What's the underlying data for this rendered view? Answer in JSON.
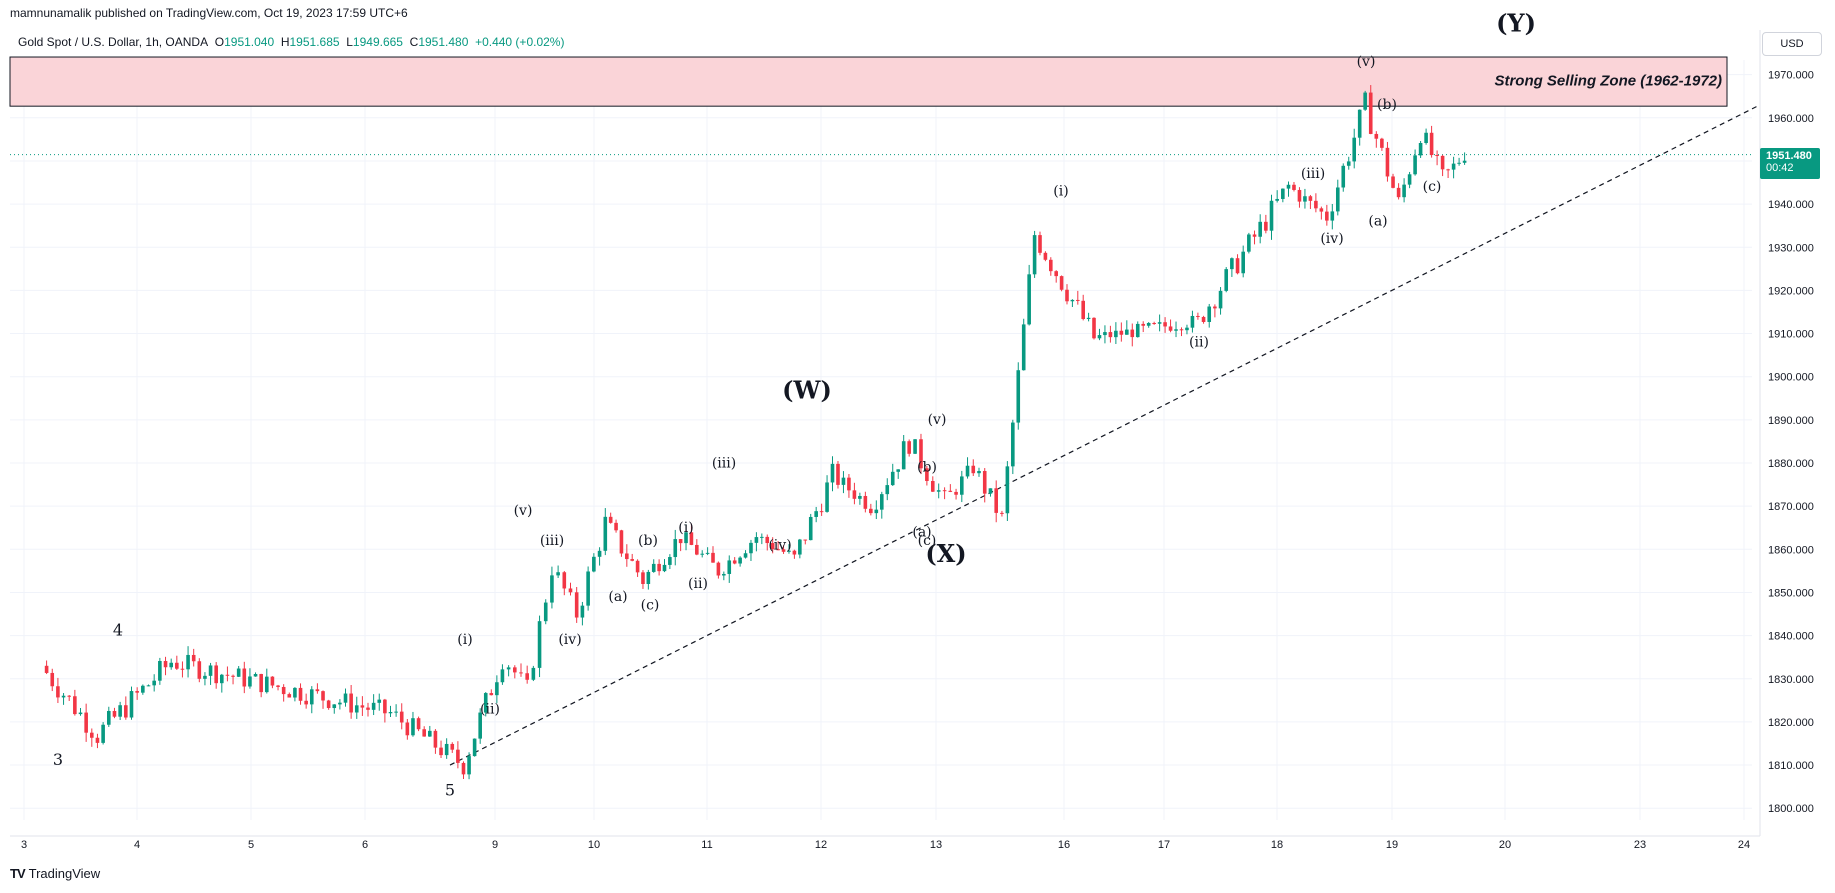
{
  "header": {
    "published": "mamnunamalik published on TradingView.com, Oct 19, 2023 17:59 UTC+6"
  },
  "symbol": {
    "name": "Gold Spot / U.S. Dollar, 1h, OANDA",
    "open_label": "O",
    "open": "1951.040",
    "high_label": "H",
    "high": "1951.685",
    "low_label": "L",
    "low": "1949.665",
    "close_label": "C",
    "close": "1951.480",
    "change": "+0.440 (+0.02%)"
  },
  "currency": "USD",
  "price_tag": {
    "price": "1951.480",
    "countdown": "00:42"
  },
  "footer": {
    "brand": "TradingView"
  },
  "colors": {
    "up": "#089981",
    "down": "#f23645",
    "zone_fill": "#fad4d8",
    "grid": "#f0f3fa"
  },
  "chart_data": {
    "type": "candlestick",
    "y_ticks": [
      "1970.000",
      "1960.000",
      "1950.000",
      "1940.000",
      "1930.000",
      "1920.000",
      "1910.000",
      "1900.000",
      "1890.000",
      "1880.000",
      "1870.000",
      "1860.000",
      "1850.000",
      "1840.000",
      "1830.000",
      "1820.000",
      "1810.000",
      "1800.000"
    ],
    "ylim": [
      1797,
      1978
    ],
    "x_ticks": [
      "3",
      "4",
      "5",
      "6",
      "9",
      "10",
      "11",
      "12",
      "13",
      "16",
      "17",
      "18",
      "19",
      "20",
      "23",
      "24"
    ],
    "key_points": [
      {
        "date": "3",
        "price": 1833
      },
      {
        "date": "3",
        "price": 1817
      },
      {
        "date": "4",
        "price": 1834
      },
      {
        "date": "6",
        "price": 1822
      },
      {
        "date": "8",
        "price": 1810
      },
      {
        "date": "9",
        "price": 1835
      },
      {
        "date": "9",
        "price": 1828
      },
      {
        "date": "9",
        "price": 1856
      },
      {
        "date": "9",
        "price": 1845
      },
      {
        "date": "10",
        "price": 1866
      },
      {
        "date": "10",
        "price": 1853
      },
      {
        "date": "10",
        "price": 1863
      },
      {
        "date": "11",
        "price": 1855
      },
      {
        "date": "11",
        "price": 1863
      },
      {
        "date": "11",
        "price": 1858
      },
      {
        "date": "12",
        "price": 1877
      },
      {
        "date": "12",
        "price": 1870
      },
      {
        "date": "12",
        "price": 1885
      },
      {
        "date": "13",
        "price": 1871
      },
      {
        "date": "13",
        "price": 1879
      },
      {
        "date": "13",
        "price": 1867
      },
      {
        "date": "15",
        "price": 1933
      },
      {
        "date": "16",
        "price": 1909
      },
      {
        "date": "17",
        "price": 1913
      },
      {
        "date": "18",
        "price": 1944
      },
      {
        "date": "18",
        "price": 1937
      },
      {
        "date": "18",
        "price": 1963
      },
      {
        "date": "19",
        "price": 1940
      },
      {
        "date": "19",
        "price": 1957
      },
      {
        "date": "19",
        "price": 1946
      },
      {
        "date": "19",
        "price": 1951.48
      }
    ],
    "selling_zone": {
      "label": "Strong Selling Zone (1962-1972)",
      "low": 1962,
      "high": 1972
    },
    "trendline": {
      "from": {
        "date": "8",
        "price": 1810
      },
      "to": {
        "date": "24",
        "price": 1963
      }
    },
    "wave_labels": [
      {
        "text": "3",
        "date": "3",
        "price": 1810,
        "size": "medium"
      },
      {
        "text": "4",
        "date": "4",
        "price": 1840,
        "size": "medium"
      },
      {
        "text": "5",
        "date": "8",
        "price": 1803,
        "size": "medium"
      },
      {
        "text": "(i)",
        "date": "9",
        "price": 1838,
        "size": "small"
      },
      {
        "text": "(ii)",
        "date": "9",
        "price": 1822,
        "size": "small"
      },
      {
        "text": "(iii)",
        "date": "9",
        "price": 1861,
        "size": "small"
      },
      {
        "text": "(iv)",
        "date": "9",
        "price": 1838,
        "size": "small"
      },
      {
        "text": "(v)",
        "date": "10",
        "price": 1868,
        "size": "small"
      },
      {
        "text": "(a)",
        "date": "10",
        "price": 1848,
        "size": "small"
      },
      {
        "text": "(b)",
        "date": "10",
        "price": 1861,
        "size": "small"
      },
      {
        "text": "(c)",
        "date": "10",
        "price": 1846,
        "size": "small"
      },
      {
        "text": "(i)",
        "date": "11",
        "price": 1864,
        "size": "small"
      },
      {
        "text": "(ii)",
        "date": "11",
        "price": 1851,
        "size": "small"
      },
      {
        "text": "(iii)",
        "date": "11",
        "price": 1879,
        "size": "small"
      },
      {
        "text": "(iv)",
        "date": "12",
        "price": 1860,
        "size": "small"
      },
      {
        "text": "(W)",
        "date": "12",
        "price": 1895,
        "size": "large"
      },
      {
        "text": "(v)",
        "date": "12",
        "price": 1889,
        "size": "small"
      },
      {
        "text": "(b)",
        "date": "12",
        "price": 1878,
        "size": "small"
      },
      {
        "text": "(a)",
        "date": "12",
        "price": 1863,
        "size": "small"
      },
      {
        "text": "(c)",
        "date": "13",
        "price": 1861,
        "size": "small"
      },
      {
        "text": "(X)",
        "date": "13",
        "price": 1857,
        "size": "large"
      },
      {
        "text": "(i)",
        "date": "15",
        "price": 1942,
        "size": "small"
      },
      {
        "text": "(ii)",
        "date": "17",
        "price": 1907,
        "size": "small"
      },
      {
        "text": "(iii)",
        "date": "18",
        "price": 1946,
        "size": "small"
      },
      {
        "text": "(iv)",
        "date": "18",
        "price": 1931,
        "size": "small"
      },
      {
        "text": "(v)",
        "date": "18",
        "price": 1972,
        "size": "small"
      },
      {
        "text": "(b)",
        "date": "18",
        "price": 1962,
        "size": "small"
      },
      {
        "text": "(a)",
        "date": "18",
        "price": 1935,
        "size": "small"
      },
      {
        "text": "(c)",
        "date": "19",
        "price": 1943,
        "size": "small"
      },
      {
        "text": "(Y)",
        "date": "19",
        "price": 1980,
        "size": "large"
      }
    ]
  }
}
